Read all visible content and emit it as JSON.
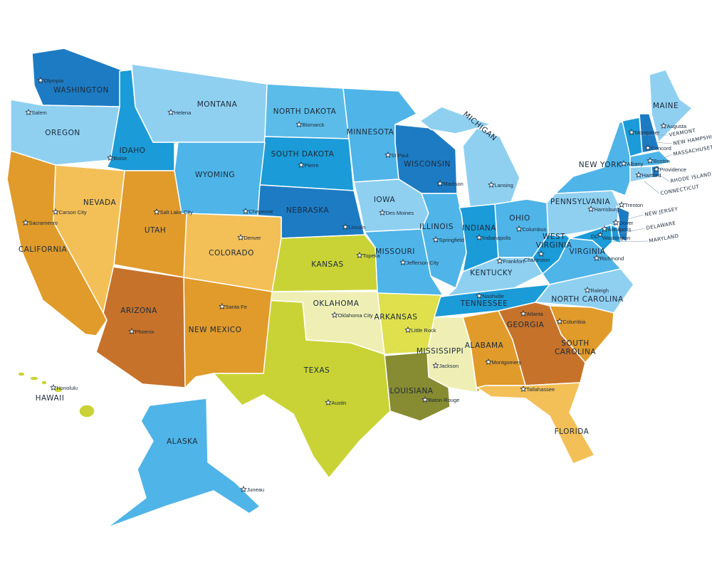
{
  "map": {
    "colors": {
      "dark_blue": "#1d7bc3",
      "mid_blue": "#1b9bd7",
      "blue": "#4fb4e8",
      "light_blue": "#8fd0f1",
      "orange": "#e09b2b",
      "dark_orange": "#c6722b",
      "light_orange": "#f3bf57",
      "yellow_green": "#c9d335",
      "pale_yellow": "#efefb5",
      "olive": "#878b31",
      "yellow": "#dfe04c"
    },
    "states": [
      {
        "code": "WA",
        "name": "WASHINGTON",
        "capital": "Olympia",
        "color": "#1d7bc3"
      },
      {
        "code": "OR",
        "name": "OREGON",
        "capital": "Salem",
        "color": "#8fd0f1"
      },
      {
        "code": "ID",
        "name": "IDAHO",
        "capital": "Boise",
        "color": "#1b9bd7"
      },
      {
        "code": "MT",
        "name": "MONTANA",
        "capital": "Helena",
        "color": "#8fd0f1"
      },
      {
        "code": "ND",
        "name": "NORTH DAKOTA",
        "capital": "Bismarck",
        "color": "#5cbce9"
      },
      {
        "code": "SD",
        "name": "SOUTH DAKOTA",
        "capital": "Pierre",
        "color": "#1b9bd7"
      },
      {
        "code": "WY",
        "name": "WYOMING",
        "capital": "Cheyenne",
        "color": "#4fb4e8"
      },
      {
        "code": "NE",
        "name": "NEBRASKA",
        "capital": "Lincoln",
        "color": "#1d7bc3"
      },
      {
        "code": "MN",
        "name": "MINNESOTA",
        "capital": "St Paul",
        "color": "#4fb4e8"
      },
      {
        "code": "WI",
        "name": "WISCONSIN",
        "capital": "Madison",
        "color": "#1d7bc3"
      },
      {
        "code": "IA",
        "name": "IOWA",
        "capital": "Des Moines",
        "color": "#8fd0f1"
      },
      {
        "code": "MI",
        "name": "MICHIGAN",
        "capital": "Lansing",
        "color": "#8fd0f1"
      },
      {
        "code": "IL",
        "name": "ILLINOIS",
        "capital": "Springfield",
        "color": "#4fb4e8"
      },
      {
        "code": "IN",
        "name": "INDIANA",
        "capital": "Indianapolis",
        "color": "#1b9bd7"
      },
      {
        "code": "OH",
        "name": "OHIO",
        "capital": "Columbus",
        "color": "#4fb4e8"
      },
      {
        "code": "KY",
        "name": "KENTUCKY",
        "capital": "Frankfort",
        "color": "#8fd0f1"
      },
      {
        "code": "TN",
        "name": "TENNESSEE",
        "capital": "Nashville",
        "color": "#1b9bd7"
      },
      {
        "code": "WV",
        "name": "WEST VIRGINIA",
        "capital": "Charleston",
        "color": "#1b9bd7"
      },
      {
        "code": "VA",
        "name": "VIRGINIA",
        "capital": "Richmond",
        "color": "#4fb4e8"
      },
      {
        "code": "NC",
        "name": "NORTH CAROLINA",
        "capital": "Raleigh",
        "color": "#8fd0f1"
      },
      {
        "code": "PA",
        "name": "PENNSYLVANIA",
        "capital": "Harrisburg",
        "color": "#8fd0f1"
      },
      {
        "code": "NY",
        "name": "NEW YORK",
        "capital": "Albany",
        "color": "#4fb4e8"
      },
      {
        "code": "ME",
        "name": "MAINE",
        "capital": "Augusta",
        "color": "#8fd0f1"
      },
      {
        "code": "VT",
        "name": "VERMONT",
        "capital": "Montpelier",
        "color": "#1b9bd7"
      },
      {
        "code": "NH",
        "name": "NEW HAMPSHIRE",
        "capital": "Concord",
        "color": "#1d7bc3"
      },
      {
        "code": "MA",
        "name": "MASSACHUSETTS",
        "capital": "Boston",
        "color": "#4fb4e8"
      },
      {
        "code": "RI",
        "name": "RHODE ISLAND",
        "capital": "Providence",
        "color": "#1d7bc3"
      },
      {
        "code": "CT",
        "name": "CONNECTICUT",
        "capital": "Hartford",
        "color": "#8fd0f1"
      },
      {
        "code": "NJ",
        "name": "NEW JERSEY",
        "capital": "Trenton",
        "color": "#1d7bc3"
      },
      {
        "code": "DE",
        "name": "DELAWARE",
        "capital": "Dover",
        "color": "#1b9bd7"
      },
      {
        "code": "MD",
        "name": "MARYLAND",
        "capital": "Annapolis",
        "color": "#1b9bd7"
      },
      {
        "code": "SC",
        "name": "SOUTH CAROLINA",
        "capital": "Columbia",
        "color": "#e09b2b"
      },
      {
        "code": "GA",
        "name": "GEORGIA",
        "capital": "Atlanta",
        "color": "#c6722b"
      },
      {
        "code": "AL",
        "name": "ALABAMA",
        "capital": "Montgomery",
        "color": "#e09b2b"
      },
      {
        "code": "FL",
        "name": "FLORIDA",
        "capital": "Tallahassee",
        "color": "#f3bf57"
      },
      {
        "code": "MS",
        "name": "MISSISSIPPI",
        "capital": "Jackson",
        "color": "#efefb5"
      },
      {
        "code": "LA",
        "name": "LOUISIANA",
        "capital": "Baton Rouge",
        "color": "#878b31"
      },
      {
        "code": "AR",
        "name": "ARKANSAS",
        "capital": "Little Rock",
        "color": "#dfe04c"
      },
      {
        "code": "MO",
        "name": "MISSOURI",
        "capital": "Jefferson City",
        "color": "#4fb4e8"
      },
      {
        "code": "KS",
        "name": "KANSAS",
        "capital": "Topeka",
        "color": "#c9d335"
      },
      {
        "code": "OK",
        "name": "OKLAHOMA",
        "capital": "Oklahoma City",
        "color": "#efefb5"
      },
      {
        "code": "TX",
        "name": "TEXAS",
        "capital": "Austin",
        "color": "#c9d335"
      },
      {
        "code": "NM",
        "name": "NEW MEXICO",
        "capital": "Santa Fe",
        "color": "#e09b2b"
      },
      {
        "code": "CO",
        "name": "COLORADO",
        "capital": "Denver",
        "color": "#f3bf57"
      },
      {
        "code": "UT",
        "name": "UTAH",
        "capital": "Salt Lake City",
        "color": "#e09b2b"
      },
      {
        "code": "AZ",
        "name": "ARIZONA",
        "capital": "Phoenix",
        "color": "#c6722b"
      },
      {
        "code": "NV",
        "name": "NEVADA",
        "capital": "Carson City",
        "color": "#f3bf57"
      },
      {
        "code": "CA",
        "name": "CALIFORNIA",
        "capital": "Sacramento",
        "color": "#e09b2b"
      },
      {
        "code": "AK",
        "name": "ALASKA",
        "capital": "Juneau",
        "color": "#4fb4e8"
      },
      {
        "code": "HI",
        "name": "HAWAII",
        "capital": "Honolulu",
        "color": "#c9d335"
      }
    ],
    "dc": {
      "label": "DC",
      "capital": "Washington"
    }
  }
}
